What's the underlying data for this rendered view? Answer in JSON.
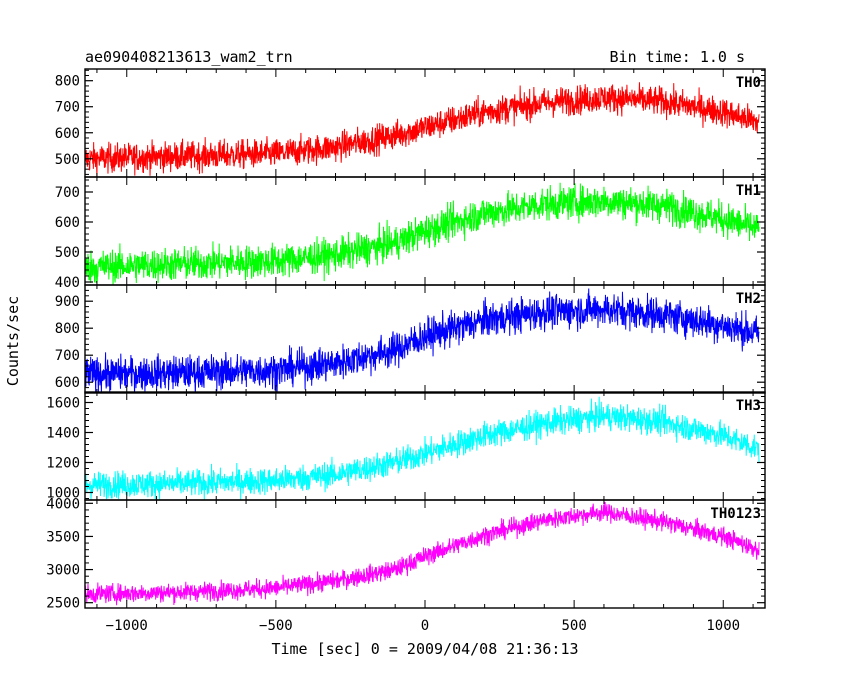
{
  "header": {
    "title": "ae090408213613_wam2_trn",
    "bin_time": "Bin time: 1.0 s"
  },
  "chart_data": {
    "type": "line",
    "xlabel": "Time [sec] 0 = 2009/04/08 21:36:13",
    "ylabel": "Counts/sec",
    "xlim": [
      -1140,
      1140
    ],
    "x_ticks": [
      -1000,
      -500,
      0,
      500,
      1000
    ],
    "x_tick_labels": [
      "−1000",
      "−500",
      "0",
      "500",
      "1000"
    ],
    "x_data_range": [
      -1140,
      1120
    ],
    "panels": [
      {
        "name": "TH0",
        "color": "#ff0000",
        "ylim": [
          430,
          845
        ],
        "y_ticks": [
          500,
          600,
          700,
          800
        ],
        "x": [
          -1140,
          -800,
          -500,
          -300,
          -100,
          0,
          200,
          400,
          600,
          800,
          1000,
          1120
        ],
        "mean": [
          500,
          510,
          520,
          545,
          590,
          620,
          680,
          715,
          735,
          720,
          680,
          640
        ],
        "noise": 28
      },
      {
        "name": "TH1",
        "color": "#00ff00",
        "ylim": [
          390,
          750
        ],
        "y_ticks": [
          400,
          500,
          600,
          700
        ],
        "x": [
          -1140,
          -800,
          -500,
          -300,
          -100,
          0,
          200,
          400,
          600,
          800,
          1000,
          1120
        ],
        "mean": [
          450,
          460,
          470,
          490,
          530,
          570,
          630,
          660,
          670,
          655,
          610,
          575
        ],
        "noise": 28
      },
      {
        "name": "TH2",
        "color": "#0000ff",
        "ylim": [
          560,
          960
        ],
        "y_ticks": [
          600,
          700,
          800,
          900
        ],
        "x": [
          -1140,
          -800,
          -500,
          -300,
          -100,
          0,
          200,
          400,
          600,
          800,
          1000,
          1120
        ],
        "mean": [
          630,
          635,
          645,
          670,
          720,
          770,
          830,
          860,
          870,
          850,
          810,
          780
        ],
        "noise": 32
      },
      {
        "name": "TH3",
        "color": "#00ffff",
        "ylim": [
          950,
          1670
        ],
        "y_ticks": [
          1000,
          1200,
          1400,
          1600
        ],
        "x": [
          -1140,
          -800,
          -500,
          -300,
          -100,
          0,
          200,
          400,
          600,
          800,
          1000,
          1120
        ],
        "mean": [
          1050,
          1060,
          1080,
          1120,
          1200,
          1260,
          1380,
          1460,
          1510,
          1470,
          1380,
          1290
        ],
        "noise": 45
      },
      {
        "name": "TH0123",
        "color": "#ff00ff",
        "ylim": [
          2420,
          4050
        ],
        "y_ticks": [
          2500,
          3000,
          3500,
          4000
        ],
        "x": [
          -1140,
          -800,
          -500,
          -300,
          -100,
          0,
          200,
          400,
          600,
          800,
          1000,
          1120
        ],
        "mean": [
          2630,
          2660,
          2720,
          2830,
          3000,
          3200,
          3520,
          3750,
          3870,
          3720,
          3500,
          3300
        ],
        "noise": 70
      }
    ]
  }
}
